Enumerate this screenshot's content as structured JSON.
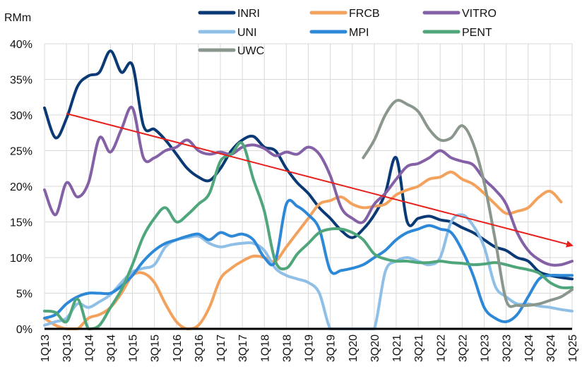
{
  "chart_data": {
    "type": "line",
    "unit_label": "RMm",
    "y_tick_labels": [
      "0%",
      "5%",
      "10%",
      "15%",
      "20%",
      "25%",
      "30%",
      "35%",
      "40%"
    ],
    "ylim": [
      0,
      40
    ],
    "x_tick_labels": [
      "1Q13",
      "3Q13",
      "1Q14",
      "3Q14",
      "1Q15",
      "3Q15",
      "1Q16",
      "3Q16",
      "1Q17",
      "3Q17",
      "1Q18",
      "3Q18",
      "1Q19",
      "3Q19",
      "1Q20",
      "3Q20",
      "1Q21",
      "3Q21",
      "1Q22",
      "3Q22",
      "1Q23",
      "3Q23",
      "1Q24",
      "3Q24",
      "1Q25"
    ],
    "x_range": [
      0,
      48
    ],
    "grid": true,
    "legend_position": "top",
    "series": [
      {
        "name": "INRI",
        "color": "#0a3a75",
        "points": [
          [
            0,
            31
          ],
          [
            1,
            26.8
          ],
          [
            2,
            29.5
          ],
          [
            3,
            34
          ],
          [
            4,
            35.5
          ],
          [
            5,
            36
          ],
          [
            6,
            39
          ],
          [
            7,
            36
          ],
          [
            8,
            37
          ],
          [
            9,
            28.5
          ],
          [
            10,
            28
          ],
          [
            11,
            26.5
          ],
          [
            12,
            24.5
          ],
          [
            13,
            22.5
          ],
          [
            14,
            21.3
          ],
          [
            15,
            20.8
          ],
          [
            16,
            22.5
          ],
          [
            17,
            25
          ],
          [
            18,
            26.5
          ],
          [
            19,
            27
          ],
          [
            20,
            25.5
          ],
          [
            21,
            25
          ],
          [
            22,
            22.5
          ],
          [
            23,
            20.5
          ],
          [
            24,
            19
          ],
          [
            25,
            17
          ],
          [
            26,
            15.5
          ],
          [
            27,
            13.8
          ],
          [
            28,
            12.8
          ],
          [
            29,
            14
          ],
          [
            30,
            16
          ],
          [
            31,
            19
          ],
          [
            32,
            24
          ],
          [
            33,
            15
          ],
          [
            34,
            15.5
          ],
          [
            35,
            15.8
          ],
          [
            36,
            15.3
          ],
          [
            37,
            15
          ],
          [
            38,
            14.2
          ],
          [
            39,
            13.5
          ],
          [
            40,
            12.5
          ],
          [
            41,
            11.5
          ],
          [
            42,
            11
          ],
          [
            43,
            10
          ],
          [
            44,
            9.5
          ],
          [
            45,
            8
          ],
          [
            46,
            7.5
          ],
          [
            47,
            7.2
          ],
          [
            48,
            7
          ]
        ]
      },
      {
        "name": "FRCB",
        "color": "#f2a25c",
        "points": [
          [
            0,
            1.5
          ],
          [
            1,
            0.5
          ],
          [
            2,
            0
          ],
          [
            3,
            0
          ],
          [
            4,
            1.5
          ],
          [
            5,
            2
          ],
          [
            6,
            3
          ],
          [
            7,
            5
          ],
          [
            8,
            7.5
          ],
          [
            9,
            7.8
          ],
          [
            10,
            6.5
          ],
          [
            11,
            3.5
          ],
          [
            12,
            1
          ],
          [
            13,
            0
          ],
          [
            14,
            0.5
          ],
          [
            15,
            3
          ],
          [
            16,
            7
          ],
          [
            17,
            8.5
          ],
          [
            18,
            9.5
          ],
          [
            19,
            10.2
          ],
          [
            20,
            10
          ],
          [
            21,
            9.5
          ],
          [
            22,
            11.5
          ],
          [
            23,
            13.5
          ],
          [
            24,
            15.5
          ],
          [
            25,
            17.5
          ],
          [
            26,
            18
          ],
          [
            27,
            18.5
          ],
          [
            28,
            17.5
          ],
          [
            29,
            17
          ],
          [
            30,
            17.2
          ],
          [
            31,
            17.5
          ],
          [
            32,
            18.8
          ],
          [
            33,
            19.5
          ],
          [
            34,
            20
          ],
          [
            35,
            21
          ],
          [
            36,
            21.3
          ],
          [
            37,
            22
          ],
          [
            38,
            21
          ],
          [
            39,
            20.3
          ],
          [
            40,
            19
          ],
          [
            41,
            17.5
          ],
          [
            42,
            16.2
          ],
          [
            43,
            16.5
          ],
          [
            44,
            17
          ],
          [
            45,
            18.5
          ],
          [
            46,
            19.3
          ],
          [
            47,
            17.8
          ]
        ]
      },
      {
        "name": "VITRO",
        "color": "#8461a6",
        "points": [
          [
            0,
            19.5
          ],
          [
            1,
            16
          ],
          [
            2,
            20.5
          ],
          [
            3,
            18.5
          ],
          [
            4,
            20.5
          ],
          [
            5,
            26.8
          ],
          [
            6,
            24.8
          ],
          [
            7,
            28
          ],
          [
            8,
            31
          ],
          [
            9,
            24
          ],
          [
            10,
            24
          ],
          [
            11,
            25
          ],
          [
            12,
            25.5
          ],
          [
            13,
            26.5
          ],
          [
            14,
            25
          ],
          [
            15,
            24.5
          ],
          [
            16,
            24.8
          ],
          [
            17,
            24.5
          ],
          [
            18,
            25.5
          ],
          [
            19,
            25.8
          ],
          [
            20,
            25.3
          ],
          [
            21,
            24.3
          ],
          [
            22,
            24.8
          ],
          [
            23,
            24.5
          ],
          [
            24,
            25.5
          ],
          [
            25,
            24.5
          ],
          [
            26,
            21.5
          ],
          [
            27,
            17
          ],
          [
            28,
            15.5
          ],
          [
            29,
            15
          ],
          [
            30,
            17.5
          ],
          [
            31,
            19
          ],
          [
            32,
            21
          ],
          [
            33,
            22.8
          ],
          [
            34,
            23.2
          ],
          [
            35,
            24
          ],
          [
            36,
            25
          ],
          [
            37,
            24
          ],
          [
            38,
            23.5
          ],
          [
            39,
            23
          ],
          [
            40,
            21
          ],
          [
            41,
            19.5
          ],
          [
            42,
            17.5
          ],
          [
            43,
            13.5
          ],
          [
            44,
            11
          ],
          [
            45,
            9.7
          ],
          [
            46,
            9
          ],
          [
            47,
            9
          ],
          [
            48,
            9.5
          ]
        ]
      },
      {
        "name": "UNI",
        "color": "#8fbfe6",
        "points": [
          [
            0,
            0.5
          ],
          [
            1,
            1
          ],
          [
            2,
            1.5
          ],
          [
            3,
            3.5
          ],
          [
            4,
            3
          ],
          [
            5,
            3.8
          ],
          [
            6,
            4.8
          ],
          [
            7,
            6.5
          ],
          [
            8,
            8
          ],
          [
            9,
            8.5
          ],
          [
            10,
            9
          ],
          [
            11,
            11.5
          ],
          [
            12,
            12.5
          ],
          [
            13,
            12.8
          ],
          [
            14,
            13
          ],
          [
            15,
            12
          ],
          [
            16,
            11.5
          ],
          [
            17,
            11.8
          ],
          [
            18,
            12
          ],
          [
            19,
            12
          ],
          [
            20,
            11
          ],
          [
            21,
            8.5
          ],
          [
            22,
            7.5
          ],
          [
            23,
            7
          ],
          [
            24,
            6.5
          ],
          [
            25,
            5
          ],
          [
            26,
            0
          ],
          [
            27,
            0
          ],
          [
            28,
            0
          ],
          [
            29,
            0
          ],
          [
            30,
            0
          ],
          [
            31,
            8
          ],
          [
            32,
            9.5
          ],
          [
            33,
            10
          ],
          [
            34,
            9.5
          ],
          [
            35,
            9
          ],
          [
            36,
            10
          ],
          [
            37,
            15
          ],
          [
            38,
            16
          ],
          [
            39,
            14.5
          ],
          [
            40,
            11.5
          ],
          [
            41,
            6
          ],
          [
            42,
            4.5
          ],
          [
            43,
            3.5
          ],
          [
            44,
            3.5
          ],
          [
            45,
            3.2
          ],
          [
            46,
            3
          ],
          [
            47,
            2.7
          ],
          [
            48,
            2.5
          ]
        ]
      },
      {
        "name": "MPI",
        "color": "#2e88d8",
        "points": [
          [
            0,
            1.5
          ],
          [
            1,
            2
          ],
          [
            2,
            3.5
          ],
          [
            3,
            4.5
          ],
          [
            4,
            5
          ],
          [
            5,
            5
          ],
          [
            6,
            5
          ],
          [
            7,
            6
          ],
          [
            8,
            7.5
          ],
          [
            9,
            9.5
          ],
          [
            10,
            11
          ],
          [
            11,
            12
          ],
          [
            12,
            12.5
          ],
          [
            13,
            13
          ],
          [
            14,
            13.3
          ],
          [
            15,
            12.5
          ],
          [
            16,
            13.5
          ],
          [
            17,
            13
          ],
          [
            18,
            13.3
          ],
          [
            19,
            12.5
          ],
          [
            20,
            10
          ],
          [
            21,
            9.5
          ],
          [
            22,
            17.5
          ],
          [
            23,
            17.2
          ],
          [
            24,
            16
          ],
          [
            25,
            14
          ],
          [
            26,
            8.2
          ],
          [
            27,
            8.2
          ],
          [
            28,
            8.5
          ],
          [
            29,
            9
          ],
          [
            30,
            10
          ],
          [
            31,
            11
          ],
          [
            32,
            12.5
          ],
          [
            33,
            13.5
          ],
          [
            34,
            14
          ],
          [
            35,
            14.5
          ],
          [
            36,
            14
          ],
          [
            37,
            13.5
          ],
          [
            38,
            11
          ],
          [
            39,
            7.5
          ],
          [
            40,
            3
          ],
          [
            41,
            1.5
          ],
          [
            42,
            1
          ],
          [
            43,
            2
          ],
          [
            44,
            4.5
          ],
          [
            45,
            7
          ],
          [
            46,
            7.5
          ],
          [
            47,
            7.5
          ],
          [
            48,
            7.5
          ]
        ]
      },
      {
        "name": "PENT",
        "color": "#4fa67a",
        "points": [
          [
            0,
            2.5
          ],
          [
            1,
            2.3
          ],
          [
            2,
            1
          ],
          [
            3,
            4.2
          ],
          [
            4,
            0
          ],
          [
            5,
            0.5
          ],
          [
            6,
            3
          ],
          [
            7,
            5.5
          ],
          [
            8,
            9
          ],
          [
            9,
            13
          ],
          [
            10,
            15.5
          ],
          [
            11,
            17
          ],
          [
            12,
            15
          ],
          [
            13,
            16
          ],
          [
            14,
            17.5
          ],
          [
            15,
            19
          ],
          [
            16,
            23.5
          ],
          [
            17,
            24.5
          ],
          [
            18,
            26
          ],
          [
            19,
            21
          ],
          [
            20,
            16.5
          ],
          [
            21,
            9.5
          ],
          [
            22,
            8.5
          ],
          [
            23,
            10.5
          ],
          [
            24,
            12
          ],
          [
            25,
            13.5
          ],
          [
            26,
            14
          ],
          [
            27,
            14
          ],
          [
            28,
            13.5
          ],
          [
            29,
            12.5
          ],
          [
            30,
            10.5
          ],
          [
            31,
            9.8
          ],
          [
            32,
            9.5
          ],
          [
            33,
            9.5
          ],
          [
            34,
            9.3
          ],
          [
            35,
            9.3
          ],
          [
            36,
            9.5
          ],
          [
            37,
            9.3
          ],
          [
            38,
            9.2
          ],
          [
            39,
            9
          ],
          [
            40,
            9.1
          ],
          [
            41,
            9.3
          ],
          [
            42,
            9
          ],
          [
            43,
            8.6
          ],
          [
            44,
            8.3
          ],
          [
            45,
            7.8
          ],
          [
            46,
            6.5
          ],
          [
            47,
            5.8
          ],
          [
            48,
            5.8
          ]
        ]
      },
      {
        "name": "UWC",
        "color": "#8a978d",
        "points": [
          [
            29,
            24
          ],
          [
            30,
            26.5
          ],
          [
            31,
            30
          ],
          [
            32,
            32
          ],
          [
            33,
            31.5
          ],
          [
            34,
            30.5
          ],
          [
            35,
            28
          ],
          [
            36,
            26.5
          ],
          [
            37,
            26.8
          ],
          [
            38,
            28.5
          ],
          [
            39,
            26
          ],
          [
            40,
            20.5
          ],
          [
            41,
            12.5
          ],
          [
            42,
            4
          ],
          [
            43,
            3.3
          ],
          [
            44,
            3.3
          ],
          [
            45,
            3.5
          ],
          [
            46,
            4
          ],
          [
            47,
            4.5
          ],
          [
            48,
            5.5
          ]
        ]
      }
    ],
    "annotations": [
      {
        "type": "trend-arrow",
        "color": "#e8201c",
        "from": [
          2,
          30.2
        ],
        "to": [
          48,
          11.7
        ]
      }
    ]
  }
}
